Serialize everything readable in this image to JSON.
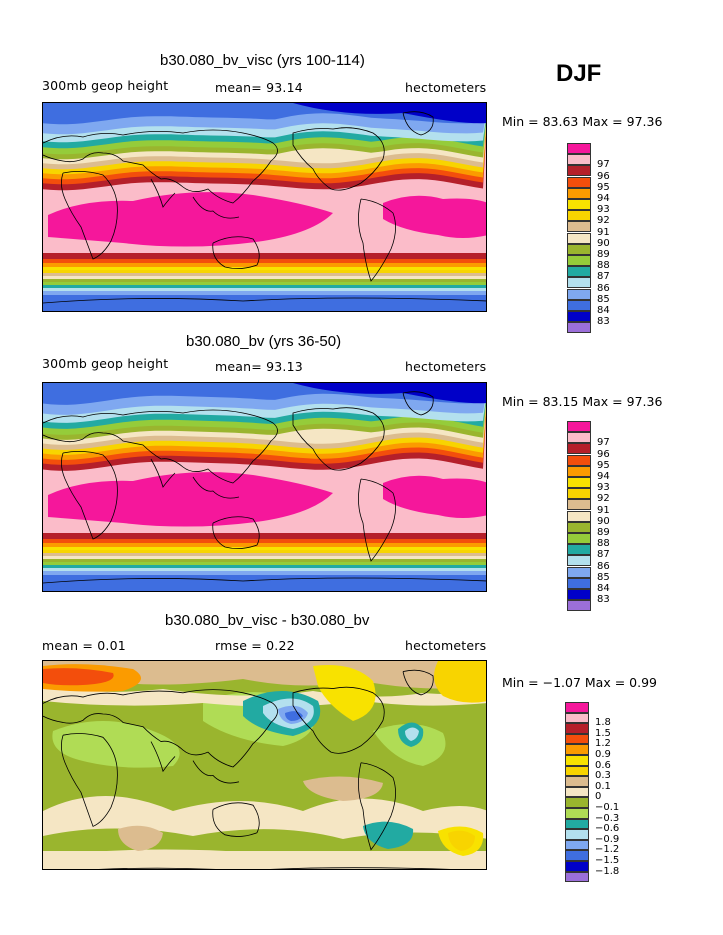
{
  "season": "DJF",
  "colors": {
    "base": [
      "#9b6fd9",
      "#0000c8",
      "#3f6ee0",
      "#7fa8f0",
      "#b3e0ee",
      "#22aaa2",
      "#95cc3a",
      "#9ab52e",
      "#f5e6c4",
      "#dcbc8f",
      "#f8d400",
      "#f8e200",
      "#fb9b00",
      "#f34e0c",
      "#b51f2a",
      "#fbbcc9",
      "#f5179b"
    ],
    "diff": [
      "#9b6fd9",
      "#0000c8",
      "#3f6ee0",
      "#7fa8f0",
      "#b3e0ee",
      "#22aaa2",
      "#b0dc55",
      "#9ab52e",
      "#f5e6c4",
      "#dcbc8f",
      "#f8d400",
      "#f8e200",
      "#fb9b00",
      "#f34e0c",
      "#b51f2a",
      "#fbbcc9",
      "#f5179b"
    ]
  },
  "panels": [
    {
      "title": "b30.080_bv_visc (yrs 100-114)",
      "left_label": "300mb geop height",
      "mid_label": "mean=  93.14",
      "units": "hectometers",
      "minmax": "Min =  83.63 Max =  97.36",
      "legend": [
        "83",
        "84",
        "85",
        "86",
        "87",
        "88",
        "89",
        "90",
        "91",
        "92",
        "93",
        "94",
        "95",
        "96",
        "97"
      ]
    },
    {
      "title": "b30.080_bv (yrs 36-50)",
      "left_label": "300mb geop height",
      "mid_label": "mean=  93.13",
      "units": "hectometers",
      "minmax": "Min =  83.15 Max =  97.36",
      "legend": [
        "83",
        "84",
        "85",
        "86",
        "87",
        "88",
        "89",
        "90",
        "91",
        "92",
        "93",
        "94",
        "95",
        "96",
        "97"
      ]
    },
    {
      "title": "b30.080_bv_visc - b30.080_bv",
      "left_label": "mean =   0.01",
      "mid_label": "rmse =   0.22",
      "units": "hectometers",
      "minmax": "Min =  −1.07 Max =   0.99",
      "legend": [
        "−1.8",
        "−1.5",
        "−1.2",
        "−0.9",
        "−0.6",
        "−0.3",
        "−0.1",
        "0",
        "0.1",
        "0.3",
        "0.6",
        "0.9",
        "1.2",
        "1.5",
        "1.8"
      ]
    }
  ],
  "chart_data": [
    {
      "type": "heatmap",
      "title": "b30.080_bv_visc (yrs 100-114)",
      "variable": "300mb geop height",
      "units": "hectometers",
      "mean": 93.14,
      "min": 83.63,
      "max": 97.36,
      "levels": [
        83,
        84,
        85,
        86,
        87,
        88,
        89,
        90,
        91,
        92,
        93,
        94,
        95,
        96,
        97
      ],
      "projection": "global cylindrical equidistant, continents outlined"
    },
    {
      "type": "heatmap",
      "title": "b30.080_bv (yrs 36-50)",
      "variable": "300mb geop height",
      "units": "hectometers",
      "mean": 93.13,
      "min": 83.15,
      "max": 97.36,
      "levels": [
        83,
        84,
        85,
        86,
        87,
        88,
        89,
        90,
        91,
        92,
        93,
        94,
        95,
        96,
        97
      ],
      "projection": "global cylindrical equidistant, continents outlined"
    },
    {
      "type": "heatmap",
      "title": "b30.080_bv_visc - b30.080_bv",
      "units": "hectometers",
      "mean": 0.01,
      "rmse": 0.22,
      "min": -1.07,
      "max": 0.99,
      "levels": [
        -1.8,
        -1.5,
        -1.2,
        -0.9,
        -0.6,
        -0.3,
        -0.1,
        0,
        0.1,
        0.3,
        0.6,
        0.9,
        1.2,
        1.5,
        1.8
      ],
      "projection": "global cylindrical equidistant, continents outlined"
    }
  ]
}
